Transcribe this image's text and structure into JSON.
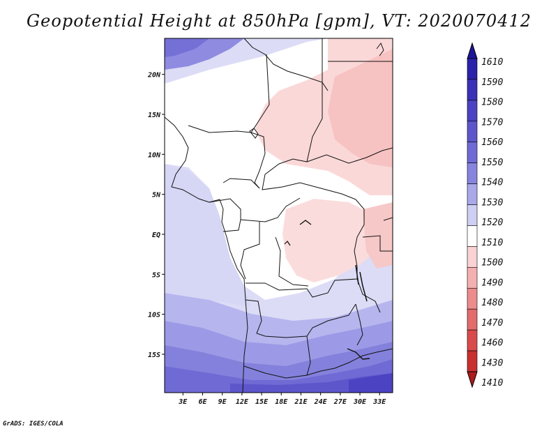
{
  "title": "Geopotential Height at 850hPa [gpm], VT: 2020070412",
  "credit": "GrADS: IGES/COLA",
  "map": {
    "lat_labels": [
      "20N",
      "15N",
      "10N",
      "5N",
      "EQ",
      "5S",
      "10S",
      "15S"
    ],
    "lat_values": [
      20,
      15,
      10,
      5,
      0,
      -5,
      -10,
      -15
    ],
    "lon_labels": [
      "3E",
      "6E",
      "9E",
      "12E",
      "15E",
      "18E",
      "21E",
      "24E",
      "27E",
      "30E",
      "33E"
    ],
    "lon_values": [
      3,
      6,
      9,
      12,
      15,
      18,
      21,
      24,
      27,
      30,
      33
    ],
    "lon_range": [
      0.2,
      35
    ],
    "lat_range": [
      -19.8,
      24.5
    ]
  },
  "colorbar": {
    "labels": [
      "1610",
      "1590",
      "1580",
      "1570",
      "1560",
      "1550",
      "1540",
      "1530",
      "1520",
      "1510",
      "1500",
      "1490",
      "1480",
      "1470",
      "1460",
      "1430",
      "1410"
    ],
    "colors": [
      "#1d1597",
      "#2a22a8",
      "#3a31b6",
      "#4b43c2",
      "#5d56cb",
      "#6f6ad4",
      "#8784de",
      "#a9a8e9",
      "#cfcff4",
      "#ffffff",
      "#fad2d2",
      "#f4b0b0",
      "#ec8c8c",
      "#e36c6c",
      "#d94b4b",
      "#c93030",
      "#ad1b1b"
    ]
  },
  "colors": {
    "frame": "#000000",
    "background": "#ffffff"
  }
}
